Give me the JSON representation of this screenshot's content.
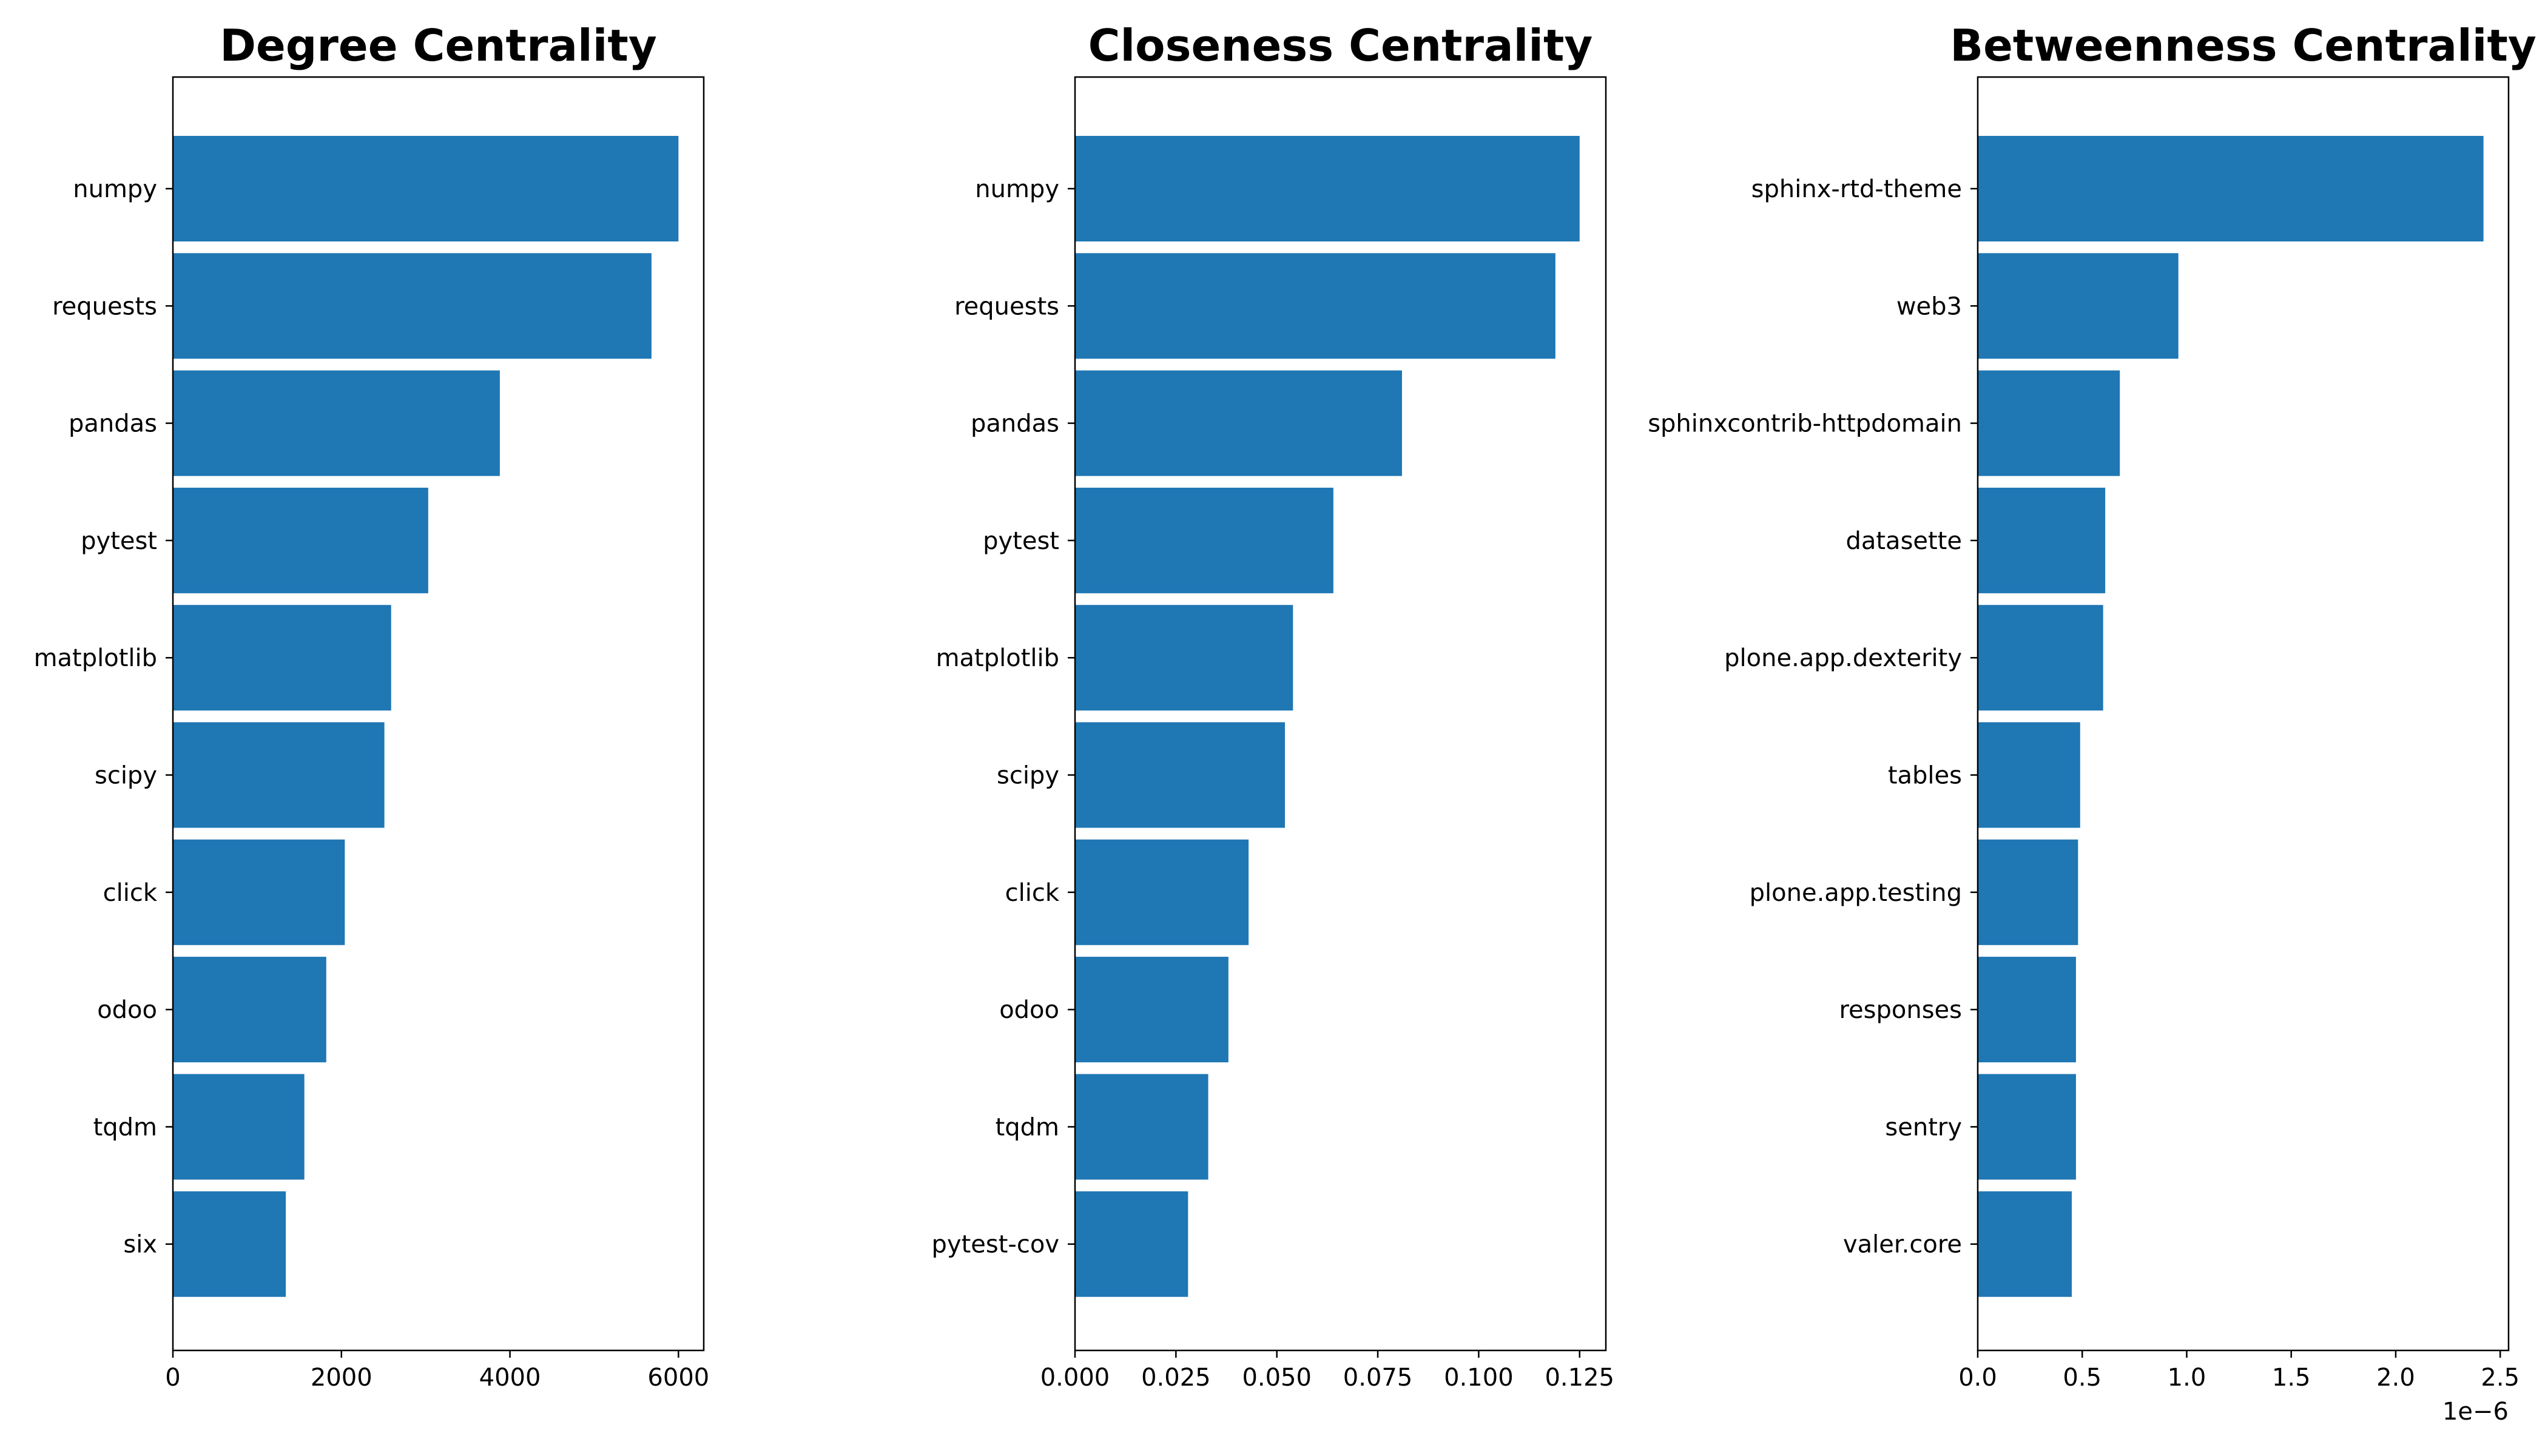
{
  "chart_data": [
    {
      "type": "bar",
      "orientation": "horizontal",
      "title": "Degree Centrality",
      "xlabel": "",
      "ylabel": "",
      "categories": [
        "numpy",
        "requests",
        "pandas",
        "pytest",
        "matplotlib",
        "scipy",
        "click",
        "odoo",
        "tqdm",
        "six"
      ],
      "values": [
        6000,
        5680,
        3880,
        3030,
        2590,
        2510,
        2040,
        1820,
        1560,
        1340
      ],
      "xlim": [
        0,
        6300
      ],
      "xticks": [
        0,
        2000,
        4000,
        6000
      ],
      "xtick_labels": [
        "0",
        "2000",
        "4000",
        "6000"
      ],
      "offset_label": "",
      "color": "#1f77b4",
      "grid": false
    },
    {
      "type": "bar",
      "orientation": "horizontal",
      "title": "Closeness Centrality",
      "xlabel": "",
      "ylabel": "",
      "categories": [
        "numpy",
        "requests",
        "pandas",
        "pytest",
        "matplotlib",
        "scipy",
        "click",
        "odoo",
        "tqdm",
        "pytest-cov"
      ],
      "values": [
        0.125,
        0.119,
        0.081,
        0.064,
        0.054,
        0.052,
        0.043,
        0.038,
        0.033,
        0.028
      ],
      "xlim": [
        0,
        0.1315
      ],
      "xticks": [
        0,
        0.025,
        0.05,
        0.075,
        0.1,
        0.125
      ],
      "xtick_labels": [
        "0.000",
        "0.025",
        "0.050",
        "0.075",
        "0.100",
        "0.125"
      ],
      "offset_label": "",
      "color": "#1f77b4",
      "grid": false
    },
    {
      "type": "bar",
      "orientation": "horizontal",
      "title": "Betweenness Centrality",
      "xlabel": "",
      "ylabel": "",
      "categories": [
        "sphinx-rtd-theme",
        "web3",
        "sphinxcontrib-httpdomain",
        "datasette",
        "plone.app.dexterity",
        "tables",
        "plone.app.testing",
        "responses",
        "sentry",
        "valer.core"
      ],
      "values": [
        2.42,
        0.96,
        0.68,
        0.61,
        0.6,
        0.49,
        0.48,
        0.47,
        0.47,
        0.45
      ],
      "value_multiplier": "1e-6",
      "xlim": [
        0,
        2.54
      ],
      "xticks": [
        0,
        0.5,
        1.0,
        1.5,
        2.0,
        2.5
      ],
      "xtick_labels": [
        "0.0",
        "0.5",
        "1.0",
        "1.5",
        "2.0",
        "2.5"
      ],
      "offset_label": "1e−6",
      "color": "#1f77b4",
      "grid": false
    }
  ]
}
